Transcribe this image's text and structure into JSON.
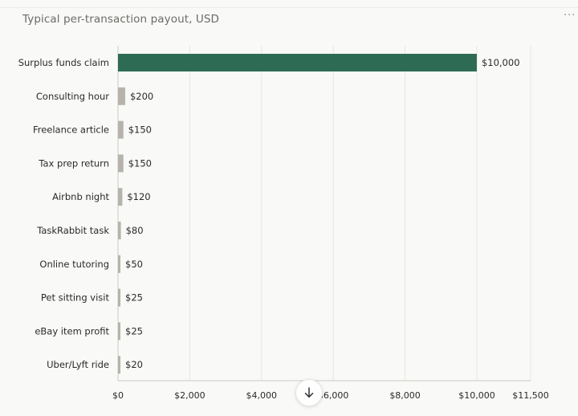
{
  "header": {
    "title": "Typical per-transaction payout, USD",
    "menu_glyph": "···"
  },
  "controls": {
    "scroll_icon": "arrow-down-icon"
  },
  "colors": {
    "highlight_bar": "#2e6b55",
    "other_bar": "#b5b3ab",
    "grid": "#e6e6e3",
    "axis": "#c9c9c6",
    "text": "#2a2a28"
  },
  "chart_data": {
    "type": "bar",
    "orientation": "horizontal",
    "title": "Typical per-transaction payout, USD",
    "xlabel": "",
    "ylabel": "",
    "categories": [
      "Surplus funds claim",
      "Consulting hour",
      "Freelance article",
      "Tax prep return",
      "Airbnb night",
      "TaskRabbit task",
      "Online tutoring",
      "Pet sitting visit",
      "eBay item profit",
      "Uber/Lyft ride"
    ],
    "values": [
      10000,
      200,
      150,
      150,
      120,
      80,
      50,
      25,
      25,
      20
    ],
    "value_labels": [
      "$10,000",
      "$200",
      "$150",
      "$150",
      "$120",
      "$80",
      "$50",
      "$25",
      "$25",
      "$20"
    ],
    "highlight_index": 0,
    "xlim": [
      0,
      11500
    ],
    "xticks": [
      0,
      2000,
      4000,
      6000,
      8000,
      10000,
      11500
    ],
    "xtick_labels": [
      "$0",
      "$2,000",
      "$4,000",
      "$6,000",
      "$8,000",
      "$10,000",
      "$11,500"
    ],
    "grid": true,
    "legend": "none"
  }
}
